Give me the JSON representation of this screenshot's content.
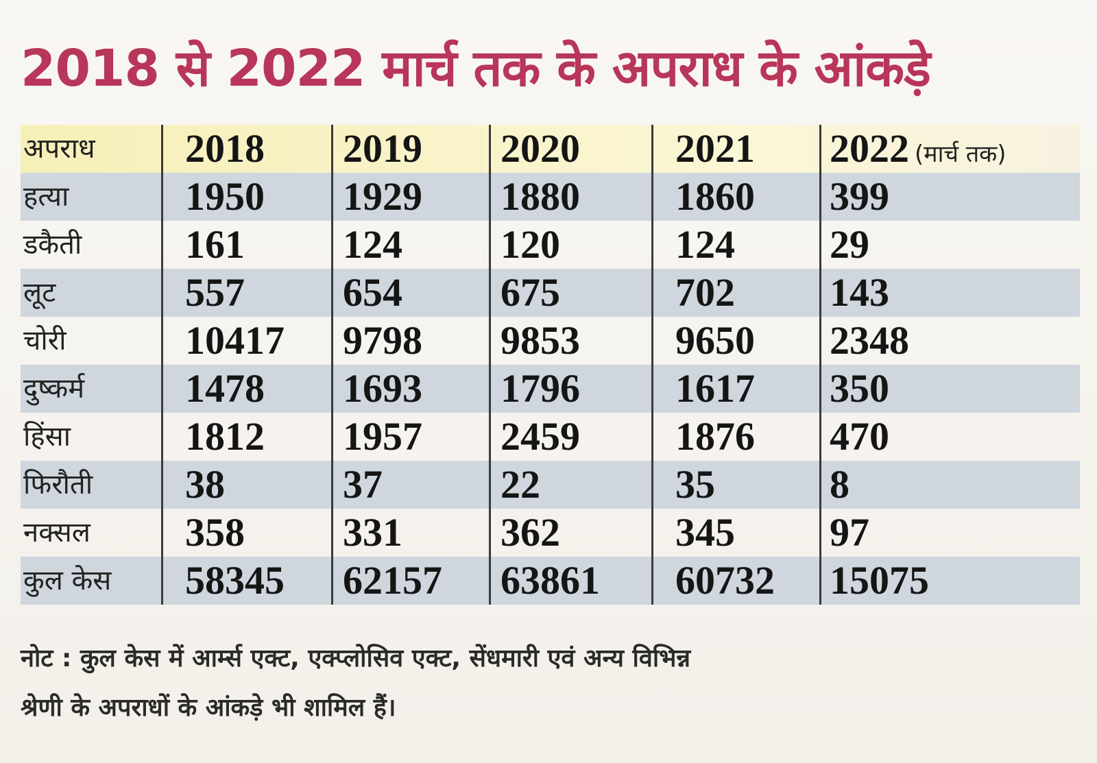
{
  "title": "2018 से 2022 मार्च तक के अपराध के आंकड़े",
  "table": {
    "header": {
      "label": "अपराध",
      "years": [
        "2018",
        "2019",
        "2020",
        "2021",
        "2022"
      ],
      "last_suffix": "(मार्च तक)"
    },
    "rows": [
      {
        "label": "हत्या",
        "values": [
          "1950",
          "1929",
          "1880",
          "1860",
          "399"
        ]
      },
      {
        "label": "डकैती",
        "values": [
          "161",
          "124",
          "120",
          "124",
          "29"
        ]
      },
      {
        "label": "लूट",
        "values": [
          "557",
          "654",
          "675",
          "702",
          "143"
        ]
      },
      {
        "label": "चोरी",
        "values": [
          "10417",
          "9798",
          "9853",
          "9650",
          "2348"
        ]
      },
      {
        "label": "दुष्कर्म",
        "values": [
          "1478",
          "1693",
          "1796",
          "1617",
          "350"
        ]
      },
      {
        "label": "हिंसा",
        "values": [
          "1812",
          "1957",
          "2459",
          "1876",
          "470"
        ]
      },
      {
        "label": "फिरौती",
        "values": [
          "38",
          "37",
          "22",
          "35",
          "8"
        ]
      },
      {
        "label": "नक्सल",
        "values": [
          "358",
          "331",
          "362",
          "345",
          "97"
        ]
      },
      {
        "label": "कुल केस",
        "values": [
          "58345",
          "62157",
          "63861",
          "60732",
          "15075"
        ]
      }
    ]
  },
  "note": {
    "line1": "नोट : कुल केस में आर्म्स एक्ट, एक्प्लोसिव एक्ट, सेंधमारी एवं अन्य विभिन्न",
    "line2": "श्रेणी के अपराधों के आंकड़े भी शामिल हैं।"
  }
}
